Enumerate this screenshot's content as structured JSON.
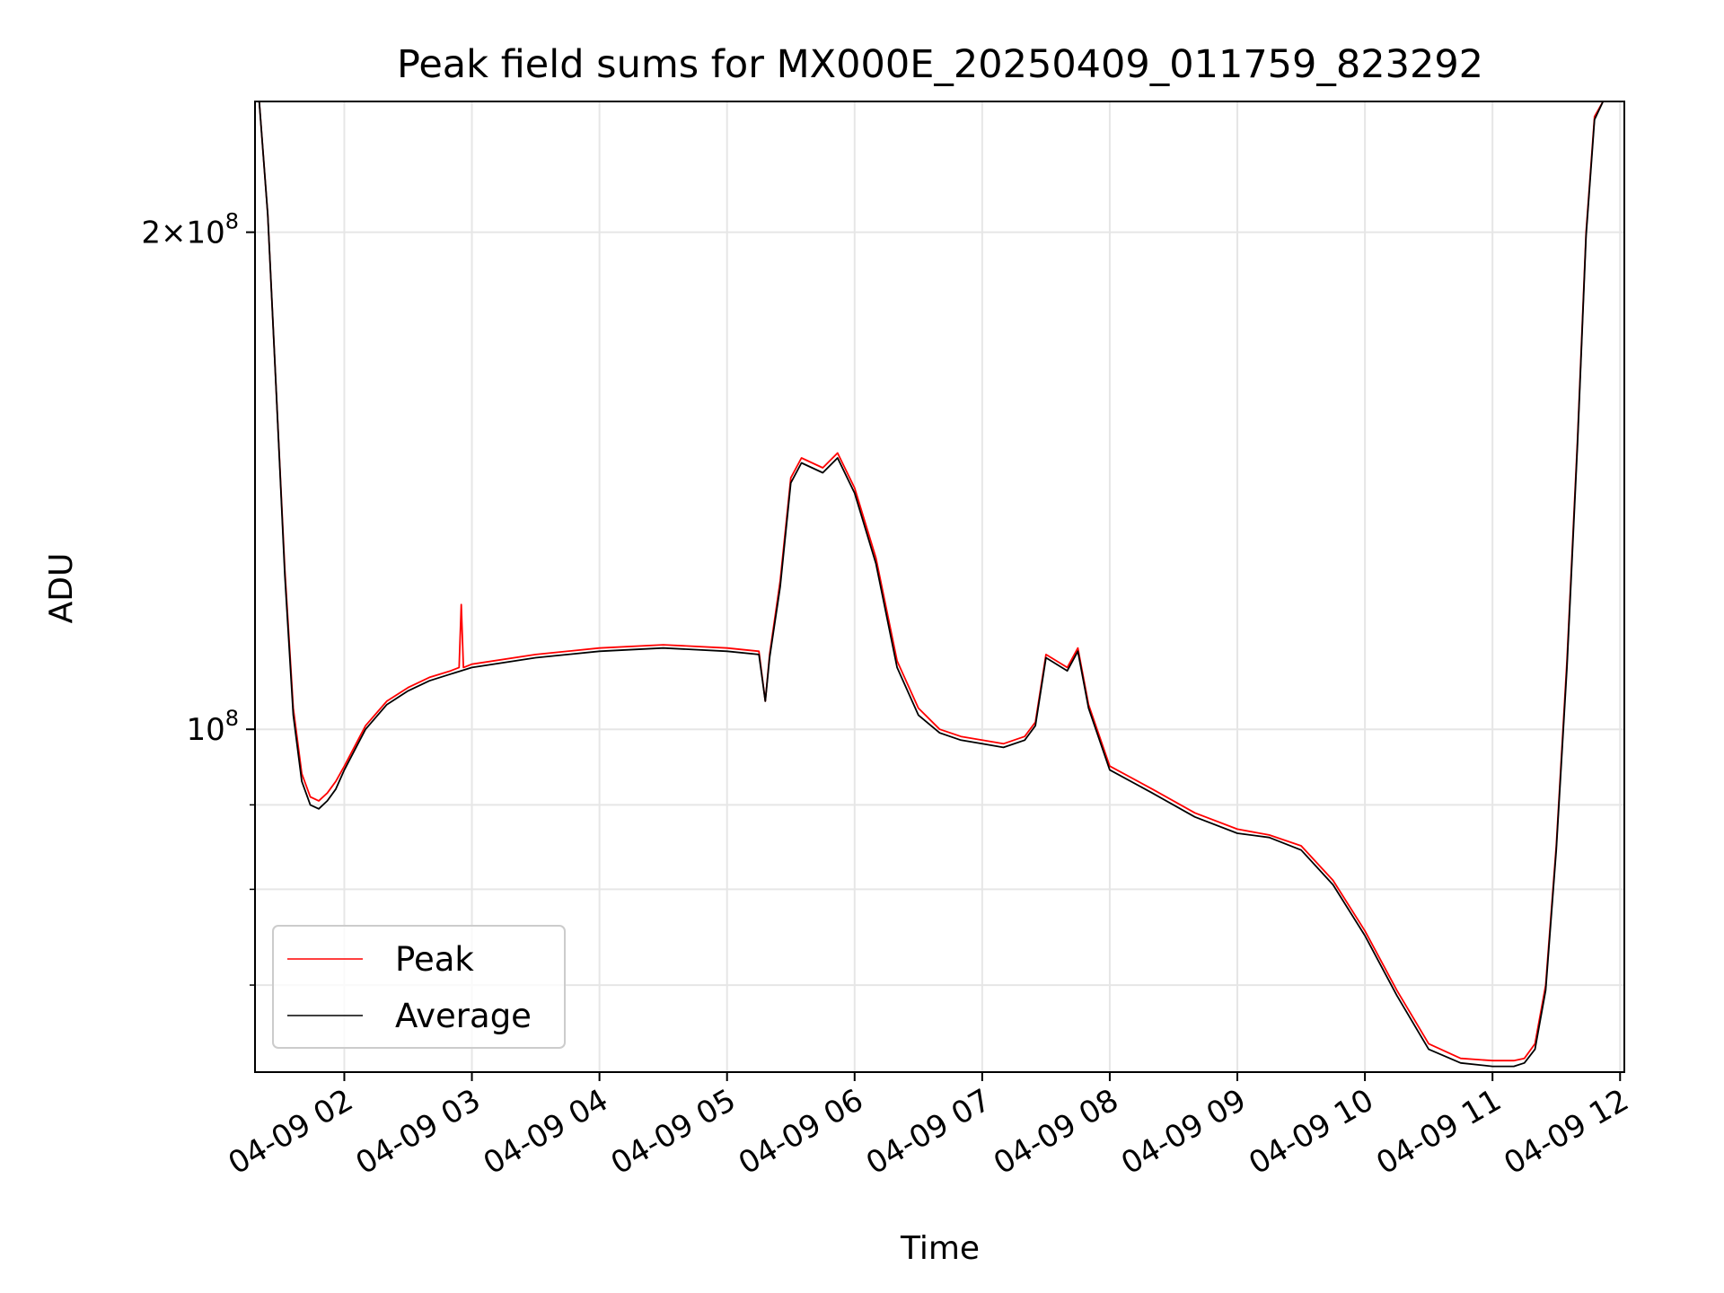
{
  "chart_data": {
    "type": "line",
    "title": "Peak field sums for MX000E_20250409_011759_823292",
    "xlabel": "Time",
    "ylabel": "ADU",
    "yscale": "log",
    "xlim": [
      "04-09 01:18",
      "04-09 12:02"
    ],
    "ylim": [
      62000000,
      240000000
    ],
    "grid": true,
    "legend_position": "lower-left",
    "x_ticks": [
      "04-09 02",
      "04-09 03",
      "04-09 04",
      "04-09 05",
      "04-09 06",
      "04-09 07",
      "04-09 08",
      "04-09 09",
      "04-09 10",
      "04-09 11",
      "04-09 12"
    ],
    "y_ticks": [
      {
        "value": 100000000,
        "mantissa": "",
        "exponent": "8"
      },
      {
        "value": 200000000,
        "mantissa": "2×",
        "exponent": "8"
      }
    ],
    "series": [
      {
        "name": "Peak",
        "color": "#ff0000",
        "x": [
          "04-09 01:20",
          "04-09 01:24",
          "04-09 01:28",
          "04-09 01:32",
          "04-09 01:36",
          "04-09 01:40",
          "04-09 01:44",
          "04-09 01:48",
          "04-09 01:52",
          "04-09 01:56",
          "04-09 02:00",
          "04-09 02:10",
          "04-09 02:20",
          "04-09 02:30",
          "04-09 02:40",
          "04-09 02:50",
          "04-09 02:54",
          "04-09 02:55",
          "04-09 02:56",
          "04-09 03:00",
          "04-09 03:30",
          "04-09 04:00",
          "04-09 04:30",
          "04-09 05:00",
          "04-09 05:15",
          "04-09 05:18",
          "04-09 05:20",
          "04-09 05:25",
          "04-09 05:30",
          "04-09 05:35",
          "04-09 05:45",
          "04-09 05:52",
          "04-09 06:00",
          "04-09 06:10",
          "04-09 06:20",
          "04-09 06:30",
          "04-09 06:40",
          "04-09 06:50",
          "04-09 07:00",
          "04-09 07:10",
          "04-09 07:20",
          "04-09 07:25",
          "04-09 07:30",
          "04-09 07:40",
          "04-09 07:45",
          "04-09 07:50",
          "04-09 08:00",
          "04-09 08:20",
          "04-09 08:40",
          "04-09 09:00",
          "04-09 09:15",
          "04-09 09:30",
          "04-09 09:45",
          "04-09 10:00",
          "04-09 10:15",
          "04-09 10:30",
          "04-09 10:45",
          "04-09 11:00",
          "04-09 11:10",
          "04-09 11:15",
          "04-09 11:20",
          "04-09 11:25",
          "04-09 11:30",
          "04-09 11:35",
          "04-09 11:40",
          "04-09 11:44",
          "04-09 11:48",
          "04-09 11:52"
        ],
        "values": [
          240000000,
          205000000,
          160000000,
          125000000,
          103000000,
          94000000,
          91000000,
          90500000,
          91500000,
          93000000,
          95000000,
          100500000,
          104000000,
          106000000,
          107500000,
          108500000,
          109000000,
          119000000,
          109000000,
          109500000,
          111000000,
          112000000,
          112500000,
          112000000,
          111500000,
          104000000,
          111000000,
          123000000,
          142000000,
          146000000,
          144000000,
          147000000,
          140000000,
          127000000,
          110000000,
          103000000,
          100000000,
          99000000,
          98500000,
          98000000,
          99000000,
          101000000,
          111000000,
          109000000,
          112000000,
          103500000,
          95000000,
          92000000,
          89000000,
          87000000,
          86300000,
          85000000,
          81000000,
          75500000,
          69500000,
          64500000,
          63200000,
          63000000,
          63000000,
          63200000,
          64500000,
          70000000,
          85000000,
          110000000,
          150000000,
          200000000,
          235000000,
          240000000
        ]
      },
      {
        "name": "Average",
        "color": "#000000",
        "x": [
          "04-09 01:20",
          "04-09 01:24",
          "04-09 01:28",
          "04-09 01:32",
          "04-09 01:36",
          "04-09 01:40",
          "04-09 01:44",
          "04-09 01:48",
          "04-09 01:52",
          "04-09 01:56",
          "04-09 02:00",
          "04-09 02:10",
          "04-09 02:20",
          "04-09 02:30",
          "04-09 02:40",
          "04-09 02:50",
          "04-09 03:00",
          "04-09 03:30",
          "04-09 04:00",
          "04-09 04:30",
          "04-09 05:00",
          "04-09 05:15",
          "04-09 05:18",
          "04-09 05:20",
          "04-09 05:25",
          "04-09 05:30",
          "04-09 05:35",
          "04-09 05:45",
          "04-09 05:52",
          "04-09 06:00",
          "04-09 06:10",
          "04-09 06:20",
          "04-09 06:30",
          "04-09 06:40",
          "04-09 06:50",
          "04-09 07:00",
          "04-09 07:10",
          "04-09 07:20",
          "04-09 07:25",
          "04-09 07:30",
          "04-09 07:40",
          "04-09 07:45",
          "04-09 07:50",
          "04-09 08:00",
          "04-09 08:20",
          "04-09 08:40",
          "04-09 09:00",
          "04-09 09:15",
          "04-09 09:30",
          "04-09 09:45",
          "04-09 10:00",
          "04-09 10:15",
          "04-09 10:30",
          "04-09 10:45",
          "04-09 11:00",
          "04-09 11:10",
          "04-09 11:15",
          "04-09 11:20",
          "04-09 11:25",
          "04-09 11:30",
          "04-09 11:35",
          "04-09 11:40",
          "04-09 11:44",
          "04-09 11:48",
          "04-09 11:52"
        ],
        "values": [
          240000000,
          205000000,
          160000000,
          124000000,
          102000000,
          93000000,
          90000000,
          89500000,
          90500000,
          92000000,
          94500000,
          100000000,
          103500000,
          105500000,
          107000000,
          108000000,
          109000000,
          110500000,
          111500000,
          112000000,
          111500000,
          111000000,
          104000000,
          110500000,
          122000000,
          141000000,
          145000000,
          143000000,
          146000000,
          139000000,
          126000000,
          109000000,
          102000000,
          99500000,
          98500000,
          98000000,
          97500000,
          98500000,
          100500000,
          110500000,
          108500000,
          111500000,
          103000000,
          94500000,
          91500000,
          88500000,
          86500000,
          86000000,
          84500000,
          80500000,
          75000000,
          69000000,
          64000000,
          62800000,
          62500000,
          62500000,
          62800000,
          64000000,
          69500000,
          84500000,
          109000000,
          149000000,
          199000000,
          234000000,
          240000000
        ]
      }
    ]
  }
}
